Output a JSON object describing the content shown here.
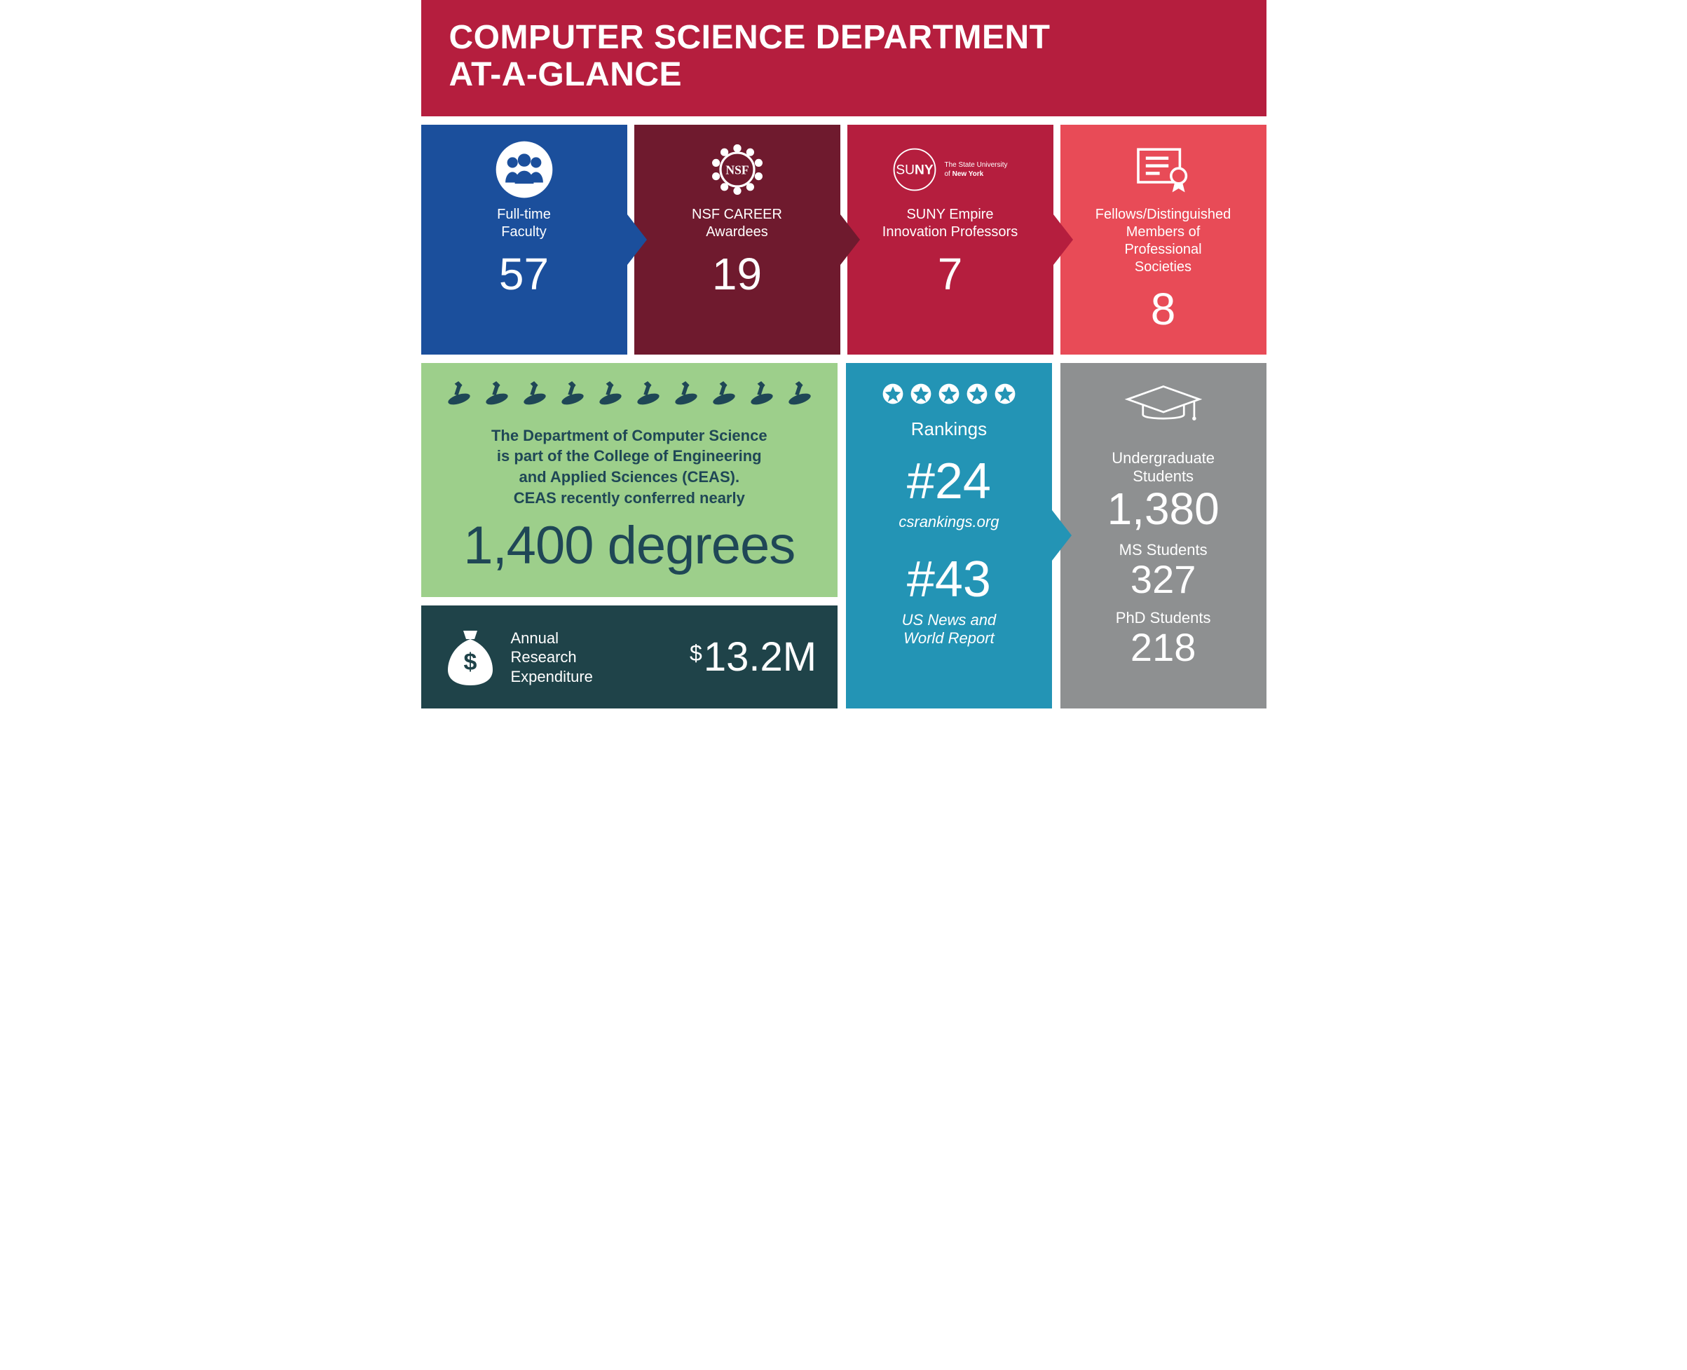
{
  "type": "infographic",
  "colors": {
    "header_bg": "#b51e3e",
    "card1_bg": "#1b4f9c",
    "card2_bg": "#6f1a2e",
    "card3_bg": "#b51e3e",
    "card4_bg": "#e84b57",
    "degrees_bg": "#9dcf8b",
    "degrees_text": "#1f4756",
    "research_bg": "#1f4349",
    "rankings_bg": "#2394b5",
    "students_bg": "#8e9091",
    "white": "#ffffff"
  },
  "typography": {
    "header_fontsize": 48,
    "header_weight": 800,
    "card_label_fontsize": 20,
    "card_num_fontsize": 64,
    "card_num_weight": 300,
    "degrees_text_fontsize": 22,
    "degrees_bignum_fontsize": 76,
    "research_label_fontsize": 22,
    "research_amt_fontsize": 58,
    "rank_val_fontsize": 72,
    "rank_src_fontsize": 22,
    "students_label_fontsize": 22,
    "students_num_fontsize": 56
  },
  "header": {
    "title_line1": "COMPUTER SCIENCE DEPARTMENT",
    "title_line2": "AT-A-GLANCE"
  },
  "cards": [
    {
      "icon": "people-icon",
      "label": "Full-time Faculty",
      "value": "57"
    },
    {
      "icon": "nsf-icon",
      "label": "NSF CAREER Awardees",
      "value": "19"
    },
    {
      "icon": "suny-icon",
      "suny_left": "SU",
      "suny_right": "NY",
      "suny_sub": "The State University\nof New York",
      "label": "SUNY Empire Innovation Professors",
      "value": "7"
    },
    {
      "icon": "certificate-icon",
      "label": "Fellows/Distinguished Members of Professional Societies",
      "value": "8"
    }
  ],
  "degrees": {
    "diploma_count": 10,
    "text_line1": "The Department of Computer Science",
    "text_line2": "is part of the College of Engineering",
    "text_line3": "and Applied Sciences (CEAS).",
    "text_line4": "CEAS recently conferred nearly",
    "value": "1,400 degrees"
  },
  "research": {
    "icon": "money-bag-icon",
    "label_line1": "Annual",
    "label_line2": "Research",
    "label_line3": "Expenditure",
    "currency": "$",
    "value": "13.2M"
  },
  "rankings": {
    "star_count": 5,
    "title": "Rankings",
    "items": [
      {
        "value": "#24",
        "source": "csrankings.org"
      },
      {
        "value": "#43",
        "source": "US News and World Report"
      }
    ]
  },
  "students": {
    "icon": "grad-cap-icon",
    "items": [
      {
        "label": "Undergraduate Students",
        "value": "1,380"
      },
      {
        "label": "MS Students",
        "value": "327"
      },
      {
        "label": "PhD Students",
        "value": "218"
      }
    ]
  }
}
